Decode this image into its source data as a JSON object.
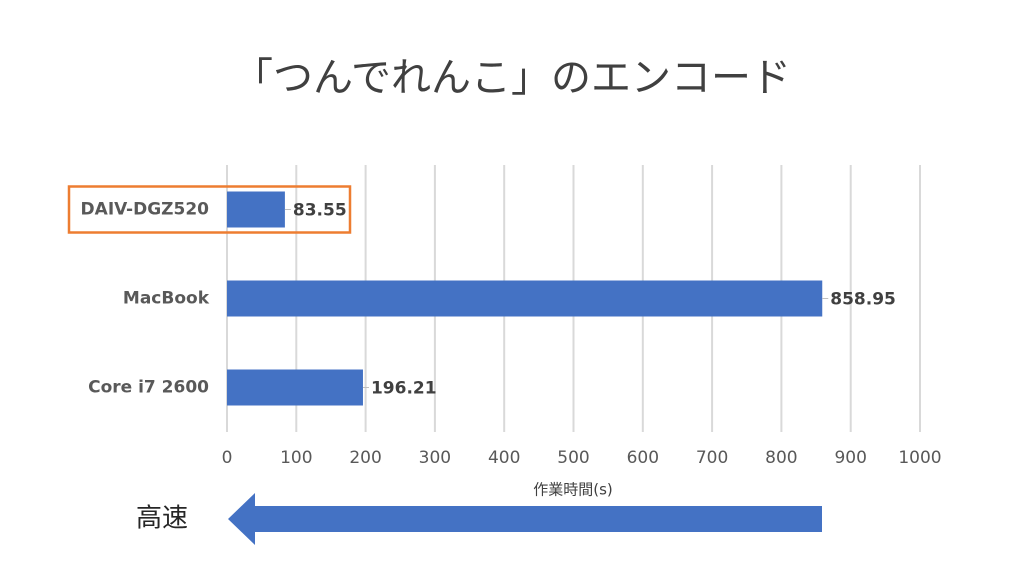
{
  "chart_data": {
    "type": "bar",
    "orientation": "horizontal",
    "title": "「つんでれんこ」のエンコード",
    "categories": [
      "DAIV-DGZ520",
      "MacBook",
      "Core i7 2600"
    ],
    "values": [
      83.55,
      858.95,
      196.21
    ],
    "color": "#4472c4",
    "x_label": "作業時間(s)",
    "xlim": [
      0,
      1000
    ],
    "xticks": [
      0,
      100,
      200,
      300,
      400,
      500,
      600,
      700,
      800,
      900,
      1000
    ],
    "grid": true,
    "highlight": {
      "index": 0,
      "color": "#ed7d31"
    },
    "annotation": "高速"
  }
}
